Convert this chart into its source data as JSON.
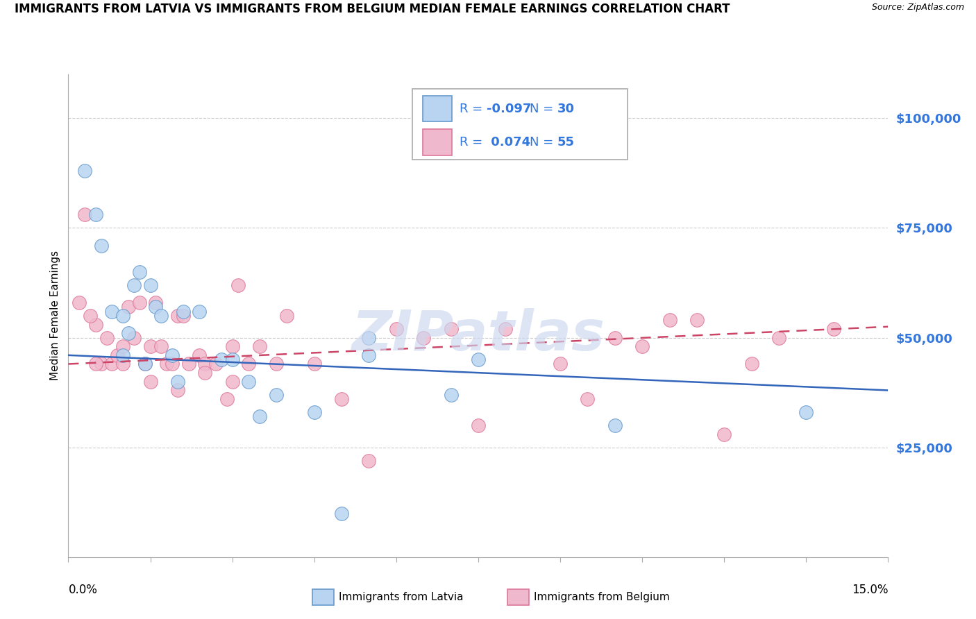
{
  "title": "IMMIGRANTS FROM LATVIA VS IMMIGRANTS FROM BELGIUM MEDIAN FEMALE EARNINGS CORRELATION CHART",
  "source": "Source: ZipAtlas.com",
  "ylabel": "Median Female Earnings",
  "ytick_vals": [
    25000,
    50000,
    75000,
    100000
  ],
  "ytick_labels": [
    "$25,000",
    "$50,000",
    "$75,000",
    "$100,000"
  ],
  "xmin": 0.0,
  "xmax": 15.0,
  "ymin": 0,
  "ymax": 110000,
  "latvia_R": "-0.097",
  "latvia_N": "30",
  "belgium_R": "0.074",
  "belgium_N": "55",
  "latvia_face": "#b8d4f0",
  "belgium_face": "#f0b8cc",
  "latvia_edge": "#6699cc",
  "belgium_edge": "#dd7799",
  "latvia_line": "#3366bb",
  "belgium_line": "#cc4466",
  "watermark": "ZIPatlas",
  "watermark_color": "#ccd8f0",
  "blue_text": "#3377dd",
  "latvia_dots_x": [
    0.3,
    0.5,
    0.6,
    0.8,
    1.0,
    1.1,
    1.2,
    1.3,
    1.5,
    1.6,
    1.7,
    1.9,
    2.1,
    2.4,
    2.8,
    3.0,
    3.3,
    3.5,
    4.5,
    5.0,
    5.5,
    7.5,
    10.0,
    13.5,
    1.0,
    1.4,
    2.0,
    3.8,
    5.5,
    7.0
  ],
  "latvia_dots_y": [
    88000,
    78000,
    71000,
    56000,
    55000,
    51000,
    62000,
    65000,
    62000,
    57000,
    55000,
    46000,
    56000,
    56000,
    45000,
    45000,
    40000,
    32000,
    33000,
    10000,
    50000,
    45000,
    30000,
    33000,
    46000,
    44000,
    40000,
    37000,
    46000,
    37000
  ],
  "belgium_dots_x": [
    0.2,
    0.3,
    0.5,
    0.6,
    0.7,
    0.8,
    0.9,
    1.0,
    1.1,
    1.2,
    1.3,
    1.4,
    1.5,
    1.6,
    1.7,
    1.8,
    1.9,
    2.0,
    2.1,
    2.2,
    2.4,
    2.5,
    2.7,
    2.9,
    3.0,
    3.1,
    3.3,
    3.5,
    3.8,
    4.0,
    4.5,
    5.0,
    5.5,
    6.0,
    6.5,
    7.0,
    7.5,
    8.0,
    9.0,
    9.5,
    10.0,
    10.5,
    11.0,
    11.5,
    12.0,
    12.5,
    13.0,
    14.0,
    0.4,
    0.5,
    1.0,
    1.5,
    2.0,
    2.5,
    3.0
  ],
  "belgium_dots_y": [
    58000,
    78000,
    53000,
    44000,
    50000,
    44000,
    46000,
    48000,
    57000,
    50000,
    58000,
    44000,
    48000,
    58000,
    48000,
    44000,
    44000,
    55000,
    55000,
    44000,
    46000,
    44000,
    44000,
    36000,
    48000,
    62000,
    44000,
    48000,
    44000,
    55000,
    44000,
    36000,
    22000,
    52000,
    50000,
    52000,
    30000,
    52000,
    44000,
    36000,
    50000,
    48000,
    54000,
    54000,
    28000,
    44000,
    50000,
    52000,
    55000,
    44000,
    44000,
    40000,
    38000,
    42000,
    40000
  ],
  "latvia_trend_x": [
    0.0,
    15.0
  ],
  "latvia_trend_y": [
    46000,
    38000
  ],
  "belgium_trend_x": [
    0.0,
    15.0
  ],
  "belgium_trend_y": [
    44000,
    52500
  ]
}
